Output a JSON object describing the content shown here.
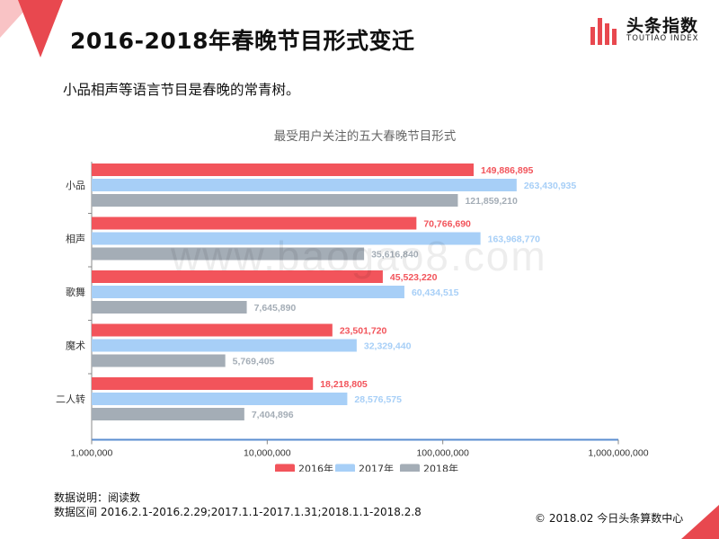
{
  "header": {
    "title": "2016-2018年春晚节目形式变迁",
    "subtitle": "小品相声等语言节目是春晚的常青树。"
  },
  "logo": {
    "name_cn": "头条指数",
    "name_en": "TOUTIAO INDEX"
  },
  "watermark": "www.baogao8.com",
  "footer": {
    "note_label": "数据说明：阅读数",
    "range_label": "数据区间 2016.2.1-2016.2.29;2017.1.1-2017.1.31;2018.1.1-2018.2.8",
    "copyright": "© 2018.02 今日头条算数中心"
  },
  "colors": {
    "accent": "#e8484f",
    "s2016": "#f2545b",
    "s2017": "#a7cff7",
    "s2018": "#a4adb6",
    "axis": "#5b8ed0"
  },
  "chart_data": {
    "type": "bar",
    "orientation": "horizontal",
    "title": "最受用户关注的五大春晚节目形式",
    "xscale": "log",
    "xlim": [
      1000000,
      1000000000
    ],
    "xticks": [
      "1,000,000",
      "10,000,000",
      "100,000,000",
      "1,000,000,000"
    ],
    "categories": [
      "小品",
      "相声",
      "歌舞",
      "魔术",
      "二人转"
    ],
    "legend_position": "bottom",
    "series": [
      {
        "name": "2016年",
        "values": [
          149886895,
          70766690,
          45523220,
          23501720,
          18218805
        ],
        "labels": [
          "149,886,895",
          "70,766,690",
          "45,523,220",
          "23,501,720",
          "18,218,805"
        ]
      },
      {
        "name": "2017年",
        "values": [
          263430935,
          163968770,
          60434515,
          32329440,
          28576575
        ],
        "labels": [
          "263,430,935",
          "163,968,770",
          "60,434,515",
          "32,329,440",
          "28,576,575"
        ]
      },
      {
        "name": "2018年",
        "values": [
          121859210,
          35616840,
          7645890,
          5769405,
          7404896
        ],
        "labels": [
          "121,859,210",
          "35,616,840",
          "7,645,890",
          "5,769,405",
          "7,404,896"
        ]
      }
    ]
  }
}
